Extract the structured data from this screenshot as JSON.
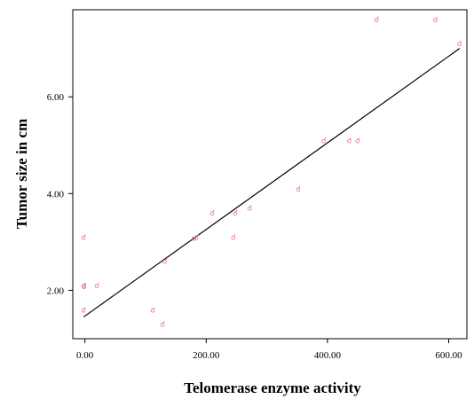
{
  "chart_data": {
    "type": "scatter",
    "title": "",
    "xlabel": "Telomerase enzyme activity",
    "ylabel": "Tumor size in cm",
    "xlim": [
      -20,
      630
    ],
    "ylim": [
      1.0,
      7.8
    ],
    "x_ticks": [
      0,
      200,
      400,
      600
    ],
    "x_tick_labels": [
      "0.00",
      "200.00",
      "400.00",
      "600.00"
    ],
    "y_ticks": [
      2,
      4,
      6
    ],
    "y_tick_labels": [
      "2.00",
      "4.00",
      "6.00"
    ],
    "grid": false,
    "legend": "none",
    "marker_glyph": "☌",
    "marker_color": "#e87878",
    "series": [
      {
        "points": [
          {
            "x": -2,
            "y": 3.1
          },
          {
            "x": -2,
            "y": 2.1
          },
          {
            "x": -1,
            "y": 2.08
          },
          {
            "x": -2,
            "y": 1.6
          },
          {
            "x": 20,
            "y": 2.1
          },
          {
            "x": 112,
            "y": 1.6
          },
          {
            "x": 128,
            "y": 1.3
          },
          {
            "x": 132,
            "y": 2.6
          },
          {
            "x": 180,
            "y": 3.08
          },
          {
            "x": 184,
            "y": 3.1
          },
          {
            "x": 210,
            "y": 3.6
          },
          {
            "x": 245,
            "y": 3.1
          },
          {
            "x": 248,
            "y": 3.6
          },
          {
            "x": 272,
            "y": 3.7
          },
          {
            "x": 352,
            "y": 4.1
          },
          {
            "x": 394,
            "y": 5.1
          },
          {
            "x": 436,
            "y": 5.1
          },
          {
            "x": 450,
            "y": 5.1
          },
          {
            "x": 481,
            "y": 7.6
          },
          {
            "x": 578,
            "y": 7.6
          },
          {
            "x": 618,
            "y": 7.1
          }
        ]
      }
    ],
    "fit_line": {
      "x": [
        -2,
        618
      ],
      "y": [
        1.45,
        7.0
      ],
      "color": "#000000"
    }
  }
}
